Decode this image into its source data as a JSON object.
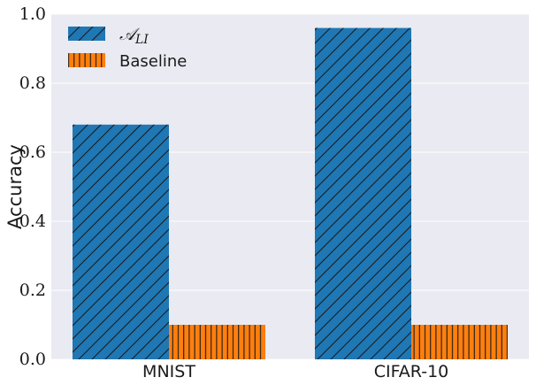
{
  "chart_data": {
    "type": "bar",
    "categories": [
      "MNIST",
      "CIFAR-10"
    ],
    "series": [
      {
        "name": "A_LI",
        "legend_main": "𝒜",
        "legend_sub": "LI",
        "values": [
          0.68,
          0.96
        ],
        "color": "#1f77b4",
        "hatch": "diagonal"
      },
      {
        "name": "Baseline",
        "legend_main": "Baseline",
        "legend_sub": "",
        "values": [
          0.1,
          0.1
        ],
        "color": "#ff7f0e",
        "hatch": "vertical"
      }
    ],
    "title": "",
    "xlabel": "",
    "ylabel": "Accuracy",
    "ylim": [
      0.0,
      1.0
    ],
    "yticks": [
      0.0,
      0.2,
      0.4,
      0.6,
      0.8,
      1.0
    ],
    "ytick_labels": [
      "0.0",
      "0.2",
      "0.4",
      "0.6",
      "0.8",
      "1.0"
    ],
    "grid": true,
    "legend_position": "top-left",
    "background_color": "#eaeaf2",
    "grid_color": "#ffffff"
  }
}
